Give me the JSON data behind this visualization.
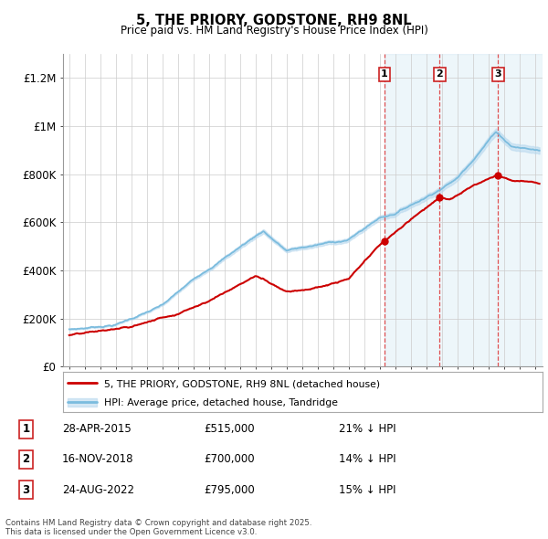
{
  "title": "5, THE PRIORY, GODSTONE, RH9 8NL",
  "subtitle": "Price paid vs. HM Land Registry's House Price Index (HPI)",
  "hpi_color": "#7bbcde",
  "hpi_fill_color": "#b8d8ee",
  "price_color": "#cc0000",
  "grid_color": "#cccccc",
  "ylim": [
    0,
    1300000
  ],
  "yticks": [
    0,
    200000,
    400000,
    600000,
    800000,
    1000000,
    1200000
  ],
  "ytick_labels": [
    "£0",
    "£200K",
    "£400K",
    "£600K",
    "£800K",
    "£1M",
    "£1.2M"
  ],
  "xlim_start": 1994.6,
  "xlim_end": 2025.5,
  "purchases": [
    {
      "num": 1,
      "date": "28-APR-2015",
      "x": 2015.32,
      "price": 515000,
      "hpi_pct": "21%"
    },
    {
      "num": 2,
      "date": "16-NOV-2018",
      "x": 2018.87,
      "price": 700000,
      "hpi_pct": "14%"
    },
    {
      "num": 3,
      "date": "24-AUG-2022",
      "x": 2022.64,
      "price": 795000,
      "hpi_pct": "15%"
    }
  ],
  "legend_label_red": "5, THE PRIORY, GODSTONE, RH9 8NL (detached house)",
  "legend_label_blue": "HPI: Average price, detached house, Tandridge",
  "footer": "Contains HM Land Registry data © Crown copyright and database right 2025.\nThis data is licensed under the Open Government Licence v3.0.",
  "table_rows": [
    [
      "1",
      "28-APR-2015",
      "£515,000",
      "21% ↓ HPI"
    ],
    [
      "2",
      "16-NOV-2018",
      "£700,000",
      "14% ↓ HPI"
    ],
    [
      "3",
      "24-AUG-2022",
      "£795,000",
      "15% ↓ HPI"
    ]
  ]
}
